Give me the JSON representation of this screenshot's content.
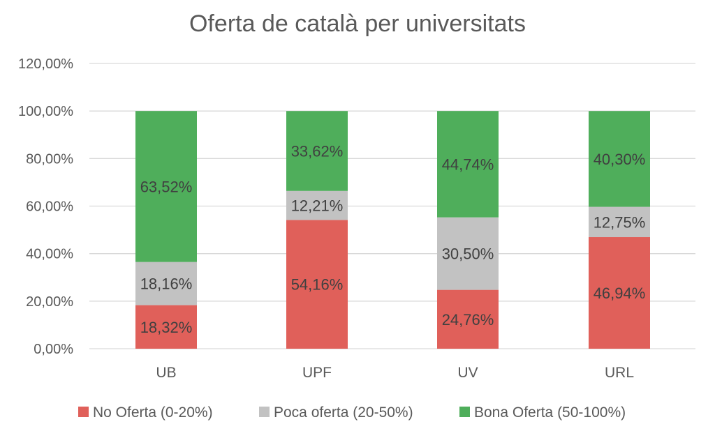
{
  "chart_data": {
    "type": "bar",
    "stacked": true,
    "title": "Oferta de català per universitats",
    "categories": [
      "UB",
      "UPF",
      "UV",
      "URL"
    ],
    "series": [
      {
        "name": "No Oferta (0-20%)",
        "values": [
          18.32,
          54.16,
          24.76,
          46.94
        ],
        "labels": [
          "18,32%",
          "54,16%",
          "24,76%",
          "46,94%"
        ],
        "color": "#e0605a"
      },
      {
        "name": "Poca oferta (20-50%)",
        "values": [
          18.16,
          12.21,
          30.5,
          12.75
        ],
        "labels": [
          "18,16%",
          "12,21%",
          "30,50%",
          "12,75%"
        ],
        "color": "#c2c2c2"
      },
      {
        "name": "Bona Oferta (50-100%)",
        "values": [
          63.52,
          33.62,
          44.74,
          40.3
        ],
        "labels": [
          "63,52%",
          "33,62%",
          "44,74%",
          "40,30%"
        ],
        "color": "#4fae5b"
      }
    ],
    "yticks": [
      0,
      20,
      40,
      60,
      80,
      100,
      120
    ],
    "ytick_labels": [
      "0,00%",
      "20,00%",
      "40,00%",
      "60,00%",
      "80,00%",
      "100,00%",
      "120,00%"
    ],
    "ylim": [
      0,
      120
    ],
    "grid": true,
    "legend_position": "bottom"
  }
}
